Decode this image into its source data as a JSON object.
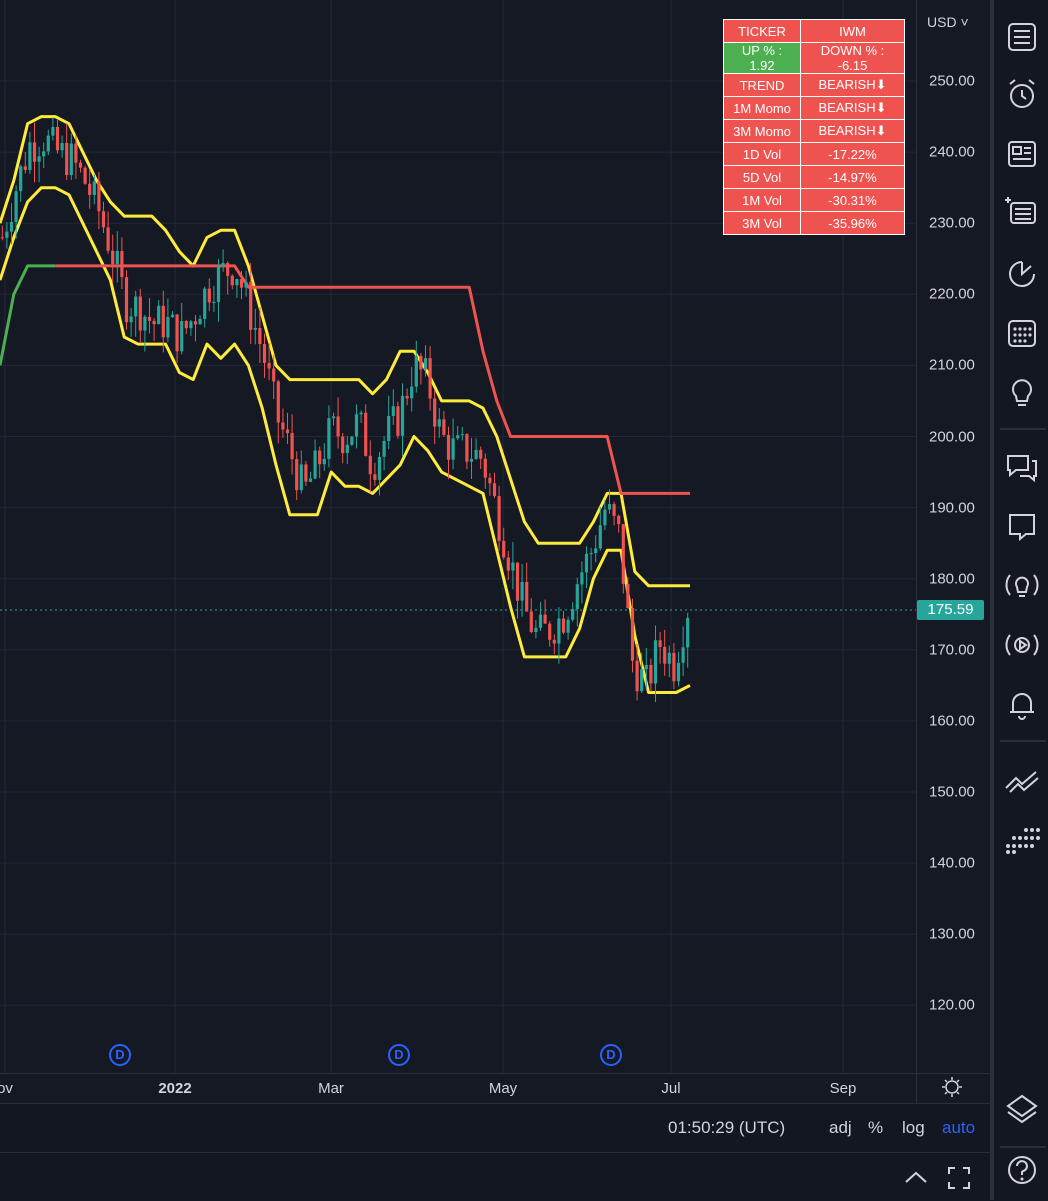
{
  "chart_data": {
    "type": "candlestick",
    "x_tick_labels": [
      "ov",
      "2022",
      "Mar",
      "May",
      "Jul",
      "Sep"
    ],
    "y_tick_labels": [
      "250.00",
      "240.00",
      "230.00",
      "220.00",
      "210.00",
      "200.00",
      "190.00",
      "180.00",
      "170.00",
      "160.00",
      "150.00",
      "140.00",
      "130.00",
      "120.00"
    ],
    "ylim": [
      110,
      256
    ],
    "last_price": 175.59,
    "series": [
      {
        "name": "upper band",
        "color": "#ffeb3b",
        "values": [
          230,
          236,
          244,
          245,
          245,
          244,
          240,
          236,
          233,
          231,
          231,
          231,
          229,
          226,
          224,
          228,
          229,
          229,
          224,
          217,
          210,
          208,
          208,
          208,
          208,
          208,
          208,
          206,
          208,
          212,
          212,
          209,
          205,
          205,
          205,
          204,
          200,
          194,
          188,
          185,
          185,
          185,
          185,
          188,
          192,
          192,
          181,
          179,
          179,
          179,
          179
        ]
      },
      {
        "name": "lower band",
        "color": "#ffeb3b",
        "values": [
          222,
          228,
          233,
          235,
          235,
          234,
          230,
          226,
          222,
          214,
          213,
          213,
          213,
          209,
          208,
          213,
          211,
          213,
          210,
          204,
          196,
          189,
          189,
          189,
          195,
          193,
          193,
          192,
          194,
          196,
          200,
          198,
          195,
          194,
          193,
          192,
          184,
          176,
          169,
          169,
          169,
          169,
          173,
          180,
          184,
          184,
          172,
          164,
          164,
          164,
          165
        ]
      },
      {
        "name": "trend",
        "color": "#ef5350",
        "values": [
          null,
          null,
          null,
          null,
          224,
          224,
          224,
          224,
          224,
          224,
          224,
          224,
          224,
          224,
          224,
          224,
          224,
          224,
          221,
          221,
          221,
          221,
          221,
          221,
          221,
          221,
          221,
          221,
          221,
          221,
          221,
          221,
          221,
          221,
          221,
          212,
          205,
          200,
          200,
          200,
          200,
          200,
          200,
          200,
          200,
          192,
          192,
          192,
          192,
          192,
          192
        ]
      },
      {
        "name": "trend start",
        "color": "#4caf50",
        "values": [
          210,
          220,
          224,
          224,
          224
        ]
      },
      {
        "name": "close",
        "color": "#26a69a",
        "values": [
          228,
          235,
          241,
          242,
          240,
          239,
          236,
          232,
          226,
          219,
          218,
          216,
          216,
          214,
          217,
          221,
          223,
          224,
          218,
          212,
          203,
          198,
          192,
          196,
          201,
          200,
          202,
          196,
          200,
          203,
          210,
          208,
          200,
          198,
          198,
          197,
          190,
          183,
          176,
          172,
          173,
          175,
          180,
          184,
          190,
          186,
          168,
          165,
          171,
          168,
          176
        ]
      }
    ],
    "info_table": {
      "rows": [
        [
          "TICKER",
          "IWM"
        ],
        [
          "UP % : 1.92",
          "DOWN % : -6.15"
        ],
        [
          "TREND",
          "BEARISH⬇"
        ],
        [
          "1M Momo",
          "BEARISH⬇"
        ],
        [
          "3M Momo",
          "BEARISH⬇"
        ],
        [
          "1D Vol",
          "-17.22%"
        ],
        [
          "5D Vol",
          "-14.97%"
        ],
        [
          "1M Vol",
          "-30.31%"
        ],
        [
          "3M Vol",
          "-35.96%"
        ]
      ]
    },
    "dividend_marker": "D"
  },
  "price_axis": {
    "currency": "USD",
    "last_price_label": "175.59"
  },
  "bottom_bar": {
    "clock": "01:50:29 (UTC)",
    "adj": "adj",
    "percent": "%",
    "log": "log",
    "auto": "auto"
  },
  "toolbar": {
    "icons": [
      "watchlist-icon",
      "alarm-clock-icon",
      "news-icon",
      "screener-icon",
      "hotlist-icon",
      "calendar-icon",
      "ideas-lightbulb-icon",
      "chats-icon",
      "private-chat-icon",
      "ideas-stream-icon",
      "streams-icon",
      "alert-bell-icon",
      "trading-panel-icon",
      "object-tree-icon",
      "layers-icon",
      "help-icon"
    ]
  },
  "colors": {
    "background": "#131722",
    "up": "#26a69a",
    "down": "#ef5350",
    "band": "#ffeb3b",
    "accent": "#2962ff"
  }
}
